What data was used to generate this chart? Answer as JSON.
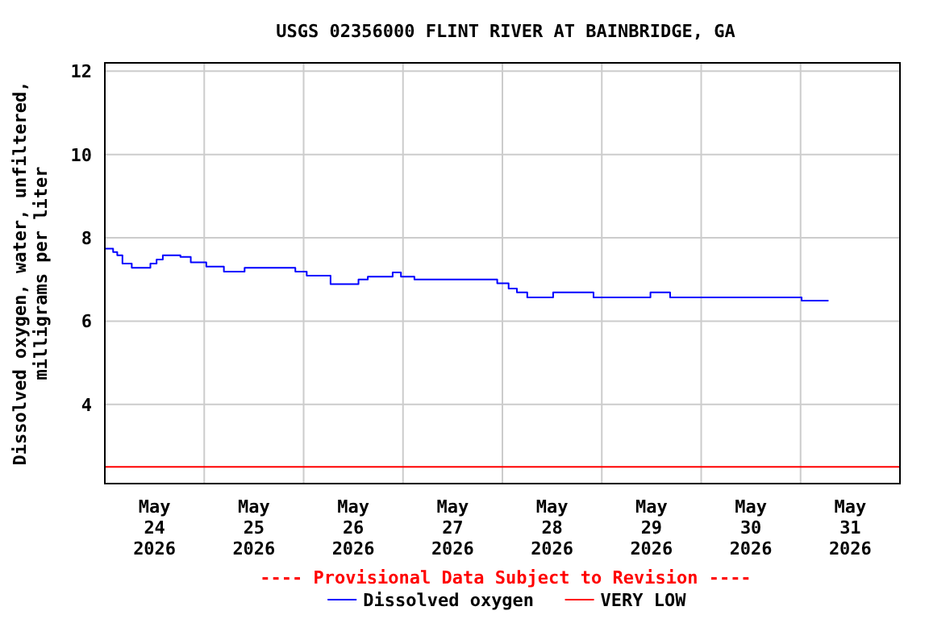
{
  "chart_data": {
    "type": "step",
    "title": "USGS 02356000 FLINT RIVER AT BAINBRIDGE, GA",
    "ylabel": "Dissolved oxygen, water, unfiltered,\nmilligrams per liter",
    "annotations": [
      "---- Provisional Data Subject to Revision ----"
    ],
    "xlim": [
      "2026-05-24T00:00",
      "2026-06-01T00:00"
    ],
    "xticks": [
      {
        "value": "2026-05-24T12:00",
        "label": "May\n24\n2026"
      },
      {
        "value": "2026-05-25T00:00",
        "label": null
      },
      {
        "value": "2026-05-25T12:00",
        "label": "May\n25\n2026"
      },
      {
        "value": "2026-05-26T00:00",
        "label": null
      },
      {
        "value": "2026-05-26T12:00",
        "label": "May\n26\n2026"
      },
      {
        "value": "2026-05-27T00:00",
        "label": null
      },
      {
        "value": "2026-05-27T12:00",
        "label": "May\n27\n2026"
      },
      {
        "value": "2026-05-28T00:00",
        "label": null
      },
      {
        "value": "2026-05-28T12:00",
        "label": "May\n28\n2026"
      },
      {
        "value": "2026-05-29T00:00",
        "label": null
      },
      {
        "value": "2026-05-29T12:00",
        "label": "May\n29\n2026"
      },
      {
        "value": "2026-05-30T00:00",
        "label": null
      },
      {
        "value": "2026-05-30T12:00",
        "label": "May\n30\n2026"
      },
      {
        "value": "2026-05-31T00:00",
        "label": null
      },
      {
        "value": "2026-05-31T12:00",
        "label": "May\n31\n2026"
      }
    ],
    "ylim": [
      2.1,
      12.2
    ],
    "yticks": [
      4,
      6,
      8,
      10,
      12
    ],
    "grid": true,
    "legend": "bottom",
    "ref_lines": [
      {
        "axis": "y",
        "value": 2.5,
        "label": "VERY LOW",
        "color": "#ff0000"
      }
    ],
    "series": [
      {
        "name": "Dissolved oxygen",
        "color": "#0000ff",
        "x": [
          "2026-05-24T00:00",
          "2026-05-24T02:00",
          "2026-05-24T03:00",
          "2026-05-24T04:15",
          "2026-05-24T06:30",
          "2026-05-24T11:00",
          "2026-05-24T12:30",
          "2026-05-24T14:00",
          "2026-05-24T18:15",
          "2026-05-24T20:45",
          "2026-05-25T00:30",
          "2026-05-25T04:45",
          "2026-05-25T09:45",
          "2026-05-25T22:00",
          "2026-05-26T00:45",
          "2026-05-26T06:30",
          "2026-05-26T13:15",
          "2026-05-26T15:30",
          "2026-05-26T21:30",
          "2026-05-26T23:30",
          "2026-05-27T02:45",
          "2026-05-27T22:45",
          "2026-05-28T01:30",
          "2026-05-28T03:30",
          "2026-05-28T06:00",
          "2026-05-28T12:15",
          "2026-05-28T22:00",
          "2026-05-29T11:45",
          "2026-05-29T16:30",
          "2026-05-31T00:15",
          "2026-05-31T06:45"
        ],
        "values": [
          7.74,
          7.66,
          7.58,
          7.38,
          7.28,
          7.38,
          7.48,
          7.58,
          7.54,
          7.41,
          7.31,
          7.19,
          7.28,
          7.19,
          7.09,
          6.89,
          7.0,
          7.07,
          7.17,
          7.07,
          7.0,
          6.91,
          6.78,
          6.69,
          6.57,
          6.69,
          6.57,
          6.69,
          6.57,
          6.49,
          6.49
        ]
      }
    ]
  }
}
